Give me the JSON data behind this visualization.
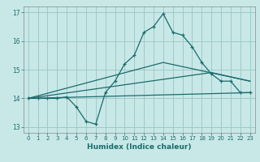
{
  "bg_color": "#c8e8e8",
  "grid_color": "#a0c8c8",
  "line_color": "#1a6b6b",
  "xlabel": "Humidex (Indice chaleur)",
  "xlim": [
    -0.5,
    23.5
  ],
  "ylim": [
    12.8,
    17.2
  ],
  "yticks": [
    13,
    14,
    15,
    16,
    17
  ],
  "xticks": [
    0,
    1,
    2,
    3,
    4,
    5,
    6,
    7,
    8,
    9,
    10,
    11,
    12,
    13,
    14,
    15,
    16,
    17,
    18,
    19,
    20,
    21,
    22,
    23
  ],
  "line1_x": [
    0,
    1,
    2,
    3,
    4,
    5,
    6,
    7,
    8,
    9,
    10,
    11,
    12,
    13,
    14,
    15,
    16,
    17,
    18,
    19,
    20,
    21,
    22,
    23
  ],
  "line1_y": [
    14.0,
    14.0,
    14.0,
    14.0,
    14.05,
    13.7,
    13.2,
    13.1,
    14.2,
    14.6,
    15.2,
    15.5,
    16.3,
    16.5,
    16.95,
    16.3,
    16.2,
    15.8,
    15.25,
    14.85,
    14.6,
    14.6,
    14.2,
    14.2
  ],
  "line2_x": [
    0,
    23
  ],
  "line2_y": [
    14.0,
    14.2
  ],
  "line3_x": [
    0,
    19,
    23
  ],
  "line3_y": [
    14.0,
    14.9,
    14.6
  ],
  "line4_x": [
    0,
    14,
    23
  ],
  "line4_y": [
    14.0,
    15.25,
    14.6
  ]
}
